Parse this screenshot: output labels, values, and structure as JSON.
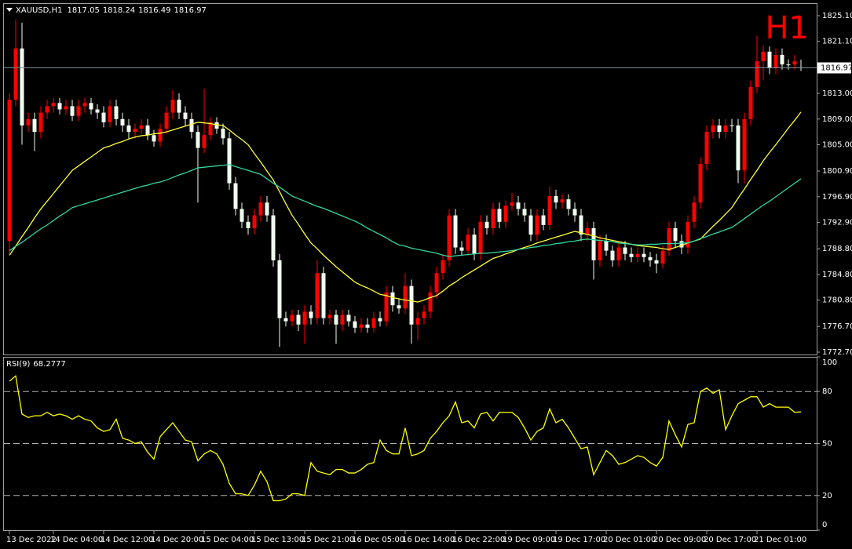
{
  "chart_data": [
    {
      "type": "candlestick",
      "title": "XAUUSD,H1",
      "label": "H1",
      "label_color": "#ff0000",
      "bull_color": "#ff0000",
      "bear_color": "#f0fff0",
      "price_line_color": "#778899",
      "ylim": [
        1772.33,
        1826.93
      ],
      "yticks": [
        {
          "value": 1825.1,
          "label": "1825.10"
        },
        {
          "value": 1821.1,
          "label": "1821.10"
        },
        {
          "value": 1813.0,
          "label": "1813.00"
        },
        {
          "value": 1809.0,
          "label": "1809.00"
        },
        {
          "value": 1805.0,
          "label": "1805.00"
        },
        {
          "value": 1800.9,
          "label": "1800.90"
        },
        {
          "value": 1796.9,
          "label": "1796.90"
        },
        {
          "value": 1792.9,
          "label": "1792.90"
        },
        {
          "value": 1788.8,
          "label": "1788.80"
        },
        {
          "value": 1784.8,
          "label": "1784.80"
        },
        {
          "value": 1780.8,
          "label": "1780.80"
        },
        {
          "value": 1776.7,
          "label": "1776.70"
        },
        {
          "value": 1772.7,
          "label": "1772.70"
        }
      ],
      "categories": [
        "13 Dec 2022",
        null,
        null,
        null,
        null,
        null,
        null,
        "14 Dec 04:00",
        null,
        null,
        null,
        null,
        null,
        null,
        null,
        "14 Dec 12:00",
        null,
        null,
        null,
        null,
        null,
        null,
        null,
        "14 Dec 20:00",
        null,
        null,
        null,
        null,
        null,
        null,
        null,
        "15 Dec 04:00",
        null,
        null,
        null,
        null,
        null,
        null,
        null,
        "15 Dec 13:00",
        null,
        null,
        null,
        null,
        null,
        null,
        null,
        "15 Dec 21:00",
        null,
        null,
        null,
        null,
        null,
        null,
        null,
        "16 Dec 05:00",
        null,
        null,
        null,
        null,
        null,
        null,
        null,
        "16 Dec 14:00",
        null,
        null,
        null,
        null,
        null,
        null,
        null,
        "16 Dec 22:00",
        null,
        null,
        null,
        null,
        null,
        null,
        null,
        "19 Dec 09:00",
        null,
        null,
        null,
        null,
        null,
        null,
        null,
        "19 Dec 17:00",
        null,
        null,
        null,
        null,
        null,
        null,
        null,
        "20 Dec 01:00",
        null,
        null,
        null,
        null,
        null,
        null,
        null,
        "20 Dec 09:00",
        null,
        null,
        null,
        null,
        null,
        null,
        null,
        "20 Dec 17:00",
        null,
        null,
        null,
        null,
        null,
        null,
        null,
        "21 Dec 01:00",
        null,
        null,
        null,
        null,
        null,
        null,
        null
      ],
      "open": [
        1790,
        1812,
        1820,
        1808,
        1809,
        1807,
        1810,
        1811,
        1811.5,
        1810.5,
        1811,
        1809.5,
        1811,
        1811.5,
        1810.5,
        1810,
        1808.5,
        1811,
        1809,
        1808,
        1807,
        1807.5,
        1808,
        1806.5,
        1805.5,
        1807.5,
        1810,
        1812,
        1810,
        1809,
        1807,
        1804.5,
        1806.5,
        1808.5,
        1807.5,
        1806,
        1799,
        1795,
        1793,
        1792,
        1794,
        1796,
        1794,
        1787,
        1778,
        1777.5,
        1778.5,
        1777,
        1779,
        1778,
        1785,
        1778,
        1778.5,
        1777,
        1778.5,
        1777.5,
        1776.5,
        1777,
        1776.5,
        1778,
        1777.5,
        1782,
        1780,
        1779.5,
        1783,
        1777,
        1778,
        1779,
        1782,
        1785,
        1787,
        1794,
        1789,
        1788.5,
        1791,
        1788,
        1793,
        1792,
        1795,
        1793,
        1795.5,
        1796,
        1795,
        1794,
        1791,
        1794,
        1792.5,
        1797,
        1796,
        1796.5,
        1795,
        1794,
        1791,
        1792,
        1787,
        1790,
        1788.5,
        1787,
        1789,
        1788,
        1787.5,
        1788,
        1787.5,
        1787,
        1786.5,
        1788.5,
        1792,
        1790,
        1789,
        1793,
        1796,
        1802,
        1807,
        1808,
        1807,
        1808,
        1808,
        1801,
        1809,
        1814,
        1818,
        1819.5,
        1817,
        1819,
        1817.5,
        1817.5,
        1817.05
      ],
      "high": [
        1813,
        1824.5,
        1824,
        1810,
        1810,
        1811,
        1812,
        1812.3,
        1812.3,
        1812,
        1812,
        1812,
        1812.3,
        1812.3,
        1811.3,
        1811,
        1812,
        1812,
        1810,
        1809,
        1808.3,
        1809,
        1809,
        1807.3,
        1808.3,
        1811,
        1813.5,
        1813,
        1811,
        1810,
        1808,
        1813.7,
        1809.3,
        1809.3,
        1808.3,
        1807,
        1800,
        1796,
        1794,
        1795,
        1797,
        1797,
        1795,
        1788,
        1779,
        1779.3,
        1779.3,
        1780,
        1780,
        1787,
        1786,
        1779.3,
        1779.3,
        1779.3,
        1779.3,
        1778.3,
        1778,
        1778,
        1779,
        1779,
        1783,
        1783,
        1781,
        1785,
        1784,
        1779,
        1780,
        1783,
        1786,
        1788,
        1795,
        1795,
        1790,
        1792,
        1792,
        1794,
        1794,
        1796,
        1796,
        1796.3,
        1797.5,
        1797,
        1796,
        1795,
        1795,
        1795,
        1798.5,
        1798,
        1797.3,
        1797.3,
        1796,
        1795,
        1793,
        1793,
        1791,
        1791,
        1789.3,
        1790,
        1790,
        1789,
        1789,
        1789,
        1788.3,
        1788,
        1789.3,
        1793,
        1793,
        1791,
        1794,
        1797,
        1803,
        1808,
        1809,
        1809,
        1809,
        1809,
        1809,
        1810,
        1815,
        1822,
        1820.5,
        1820.3,
        1820,
        1820,
        1818.3,
        1819,
        1818.24
      ],
      "low": [
        1788,
        1811,
        1805,
        1807,
        1804,
        1806,
        1809,
        1810,
        1809.7,
        1809.7,
        1808.7,
        1808.7,
        1810,
        1809.7,
        1809,
        1807.7,
        1807.7,
        1808,
        1807,
        1806,
        1806,
        1806.7,
        1805.7,
        1804.7,
        1804.7,
        1806.7,
        1809,
        1809,
        1808,
        1806,
        1796,
        1803.7,
        1805.7,
        1806.7,
        1805,
        1798,
        1794,
        1792,
        1791,
        1791,
        1793,
        1793,
        1786,
        1773.5,
        1776.7,
        1776.7,
        1776,
        1774,
        1777,
        1777,
        1777,
        1777,
        1774,
        1776,
        1776.7,
        1775.7,
        1775.7,
        1775.7,
        1775.7,
        1776.7,
        1776.7,
        1779,
        1778.7,
        1778.7,
        1774,
        1774.5,
        1777,
        1778,
        1781,
        1784,
        1786,
        1788,
        1787.7,
        1787.7,
        1787,
        1787,
        1791,
        1791,
        1792,
        1792,
        1794.7,
        1794,
        1793,
        1790,
        1790,
        1791.7,
        1791.7,
        1795,
        1795,
        1794,
        1793,
        1790,
        1790,
        1784,
        1786,
        1787.7,
        1786,
        1786,
        1787,
        1786.7,
        1786.7,
        1786.7,
        1786,
        1785,
        1785.7,
        1787.7,
        1789,
        1788,
        1788,
        1792,
        1795,
        1801,
        1806,
        1806,
        1806,
        1807,
        1799,
        1799,
        1808,
        1813,
        1815,
        1816,
        1816,
        1816.7,
        1816.7,
        1816.7,
        1816.49
      ],
      "close": [
        1812,
        1820,
        1808,
        1809,
        1807,
        1810,
        1811,
        1811.5,
        1810.5,
        1811,
        1809.5,
        1811,
        1811.5,
        1810.5,
        1810,
        1808.5,
        1811,
        1809,
        1808,
        1807,
        1807.5,
        1808,
        1806.5,
        1805.5,
        1807.5,
        1810,
        1812,
        1810,
        1809,
        1807,
        1804.5,
        1806.5,
        1808.5,
        1807.5,
        1806,
        1799,
        1795,
        1793,
        1792,
        1794,
        1796,
        1794,
        1787,
        1778,
        1777.5,
        1778.5,
        1777,
        1779,
        1778,
        1785,
        1778,
        1778.5,
        1777,
        1778.5,
        1777.5,
        1776.5,
        1777,
        1776.5,
        1778,
        1777.5,
        1782,
        1780,
        1779.5,
        1783,
        1777,
        1778,
        1779,
        1782,
        1785,
        1787,
        1794,
        1789,
        1788.5,
        1791,
        1788,
        1793,
        1792,
        1795,
        1793,
        1795.5,
        1796,
        1795,
        1794,
        1791,
        1794,
        1792.5,
        1797,
        1796,
        1796.5,
        1795,
        1794,
        1791,
        1792,
        1787,
        1790,
        1788.5,
        1787,
        1789,
        1788,
        1787.5,
        1788,
        1787.5,
        1787,
        1786.5,
        1788.5,
        1792,
        1790,
        1789,
        1793,
        1796,
        1802,
        1807,
        1808,
        1807,
        1808,
        1808,
        1801,
        1809,
        1814,
        1818,
        1819.5,
        1817,
        1819,
        1817.5,
        1817.5,
        1818,
        1816.97
      ],
      "lines": [
        {
          "color": "#ffff33",
          "values": [
            1787.8,
            1789.2,
            1790.7,
            1792.1,
            1793.6,
            1795,
            1796.2,
            1797.4,
            1798.6,
            1799.8,
            1801,
            1801.7,
            1802.4,
            1803.1,
            1803.8,
            1804.5,
            1804.8,
            1805.2,
            1805.5,
            1805.9,
            1806.2,
            1806.4,
            1806.5,
            1806.7,
            1806.8,
            1807,
            1807.3,
            1807.6,
            1807.9,
            1808.2,
            1808.5,
            1808.4,
            1808.3,
            1808.1,
            1808,
            1807.3,
            1806.5,
            1805.8,
            1805,
            1803.6,
            1802.3,
            1800.9,
            1799.5,
            1797.7,
            1795.8,
            1794,
            1792.6,
            1791.1,
            1789.7,
            1788.8,
            1787.8,
            1786.9,
            1786,
            1785.2,
            1784.4,
            1783.6,
            1783.1,
            1782.7,
            1782.2,
            1781.7,
            1781.5,
            1781.2,
            1781,
            1780.8,
            1780.7,
            1780.5,
            1780.8,
            1781.2,
            1781.5,
            1782.2,
            1783,
            1783.6,
            1784.3,
            1784.9,
            1785.5,
            1786.1,
            1786.7,
            1787.3,
            1787.6,
            1788,
            1788.3,
            1788.7,
            1789,
            1789.3,
            1789.7,
            1790,
            1790.3,
            1790.6,
            1790.9,
            1791.2,
            1791.5,
            1791.3,
            1791,
            1790.8,
            1790.5,
            1790.3,
            1790.1,
            1789.9,
            1789.7,
            1789.5,
            1789.3,
            1789.2,
            1789.1,
            1789,
            1788.8,
            1788.7,
            1789,
            1789.3,
            1789.7,
            1790,
            1790.3,
            1791.3,
            1792.3,
            1793.2,
            1794.2,
            1795.2,
            1796.7,
            1798.1,
            1799.6,
            1801,
            1802.5,
            1803.8,
            1805,
            1806.3,
            1807.6,
            1808.8,
            1810.1
          ]
        },
        {
          "color": "#33d6a0",
          "values": [
            1788.5,
            1789.2,
            1789.8,
            1790.5,
            1791.2,
            1791.9,
            1792.5,
            1793.2,
            1793.9,
            1794.5,
            1795.2,
            1795.5,
            1795.8,
            1796.1,
            1796.4,
            1796.7,
            1797,
            1797.3,
            1797.6,
            1797.9,
            1798.2,
            1798.5,
            1798.7,
            1799,
            1799.2,
            1799.5,
            1799.9,
            1800.3,
            1800.6,
            1801,
            1801.4,
            1801.5,
            1801.6,
            1801.7,
            1801.8,
            1801.9,
            1801.6,
            1801.3,
            1801,
            1800.7,
            1800.4,
            1799.7,
            1799,
            1798.4,
            1797.7,
            1797,
            1796.6,
            1796.2,
            1795.8,
            1795.4,
            1795.1,
            1794.7,
            1794.3,
            1793.9,
            1793.5,
            1793.1,
            1792.6,
            1792,
            1791.5,
            1791,
            1790.5,
            1789.9,
            1789.4,
            1789.2,
            1788.9,
            1788.7,
            1788.5,
            1788.3,
            1788.1,
            1787.8,
            1787.6,
            1787.7,
            1787.8,
            1787.9,
            1788,
            1788.1,
            1788.1,
            1788.2,
            1788.3,
            1788.4,
            1788.5,
            1788.7,
            1788.8,
            1789,
            1789.1,
            1789.3,
            1789.4,
            1789.6,
            1789.7,
            1789.9,
            1790,
            1790.2,
            1790.3,
            1790.2,
            1790.1,
            1790,
            1789.9,
            1789.7,
            1789.6,
            1789.5,
            1789.4,
            1789.4,
            1789.5,
            1789.5,
            1789.6,
            1789.6,
            1789.6,
            1789.7,
            1789.7,
            1790,
            1790.4,
            1790.7,
            1791.1,
            1791.4,
            1791.8,
            1792.1,
            1792.8,
            1793.5,
            1794.2,
            1794.9,
            1795.6,
            1796.2,
            1796.9,
            1797.6,
            1798.3,
            1799,
            1799.7
          ]
        }
      ]
    },
    {
      "type": "line",
      "title": "RSI(9)",
      "color": "#ffff00",
      "level_color": "#b0b0b0",
      "ylim": [
        0,
        100
      ],
      "yticks": [
        100,
        80,
        50,
        20,
        0
      ],
      "levels": [
        80,
        50,
        20
      ],
      "values": [
        86,
        89,
        67,
        65,
        66,
        66,
        68,
        66,
        67,
        66,
        64,
        66,
        64,
        63,
        59,
        57,
        58,
        64,
        53,
        52,
        50,
        51,
        45,
        41,
        54,
        58,
        62,
        57,
        52,
        51,
        40,
        44,
        46,
        44,
        38,
        27,
        21,
        21,
        20,
        26,
        34,
        28,
        17,
        17,
        18,
        21,
        21,
        20,
        39,
        34,
        33,
        32,
        35,
        35,
        33,
        33,
        35,
        38,
        39,
        52,
        46,
        44,
        44,
        59,
        43,
        44,
        46,
        53,
        57,
        62,
        66,
        74,
        62,
        63,
        59,
        67,
        68,
        63,
        68,
        68,
        68,
        65,
        59,
        52,
        57,
        59,
        70,
        62,
        64,
        59,
        53,
        47,
        48,
        32,
        39,
        46,
        43,
        38,
        39,
        41,
        43,
        42,
        39,
        37,
        42,
        63,
        55,
        48,
        61,
        62,
        80,
        82,
        79,
        81,
        58,
        66,
        73,
        75,
        77,
        77,
        71,
        73,
        71,
        71,
        71,
        68,
        68.2777
      ]
    }
  ]
}
